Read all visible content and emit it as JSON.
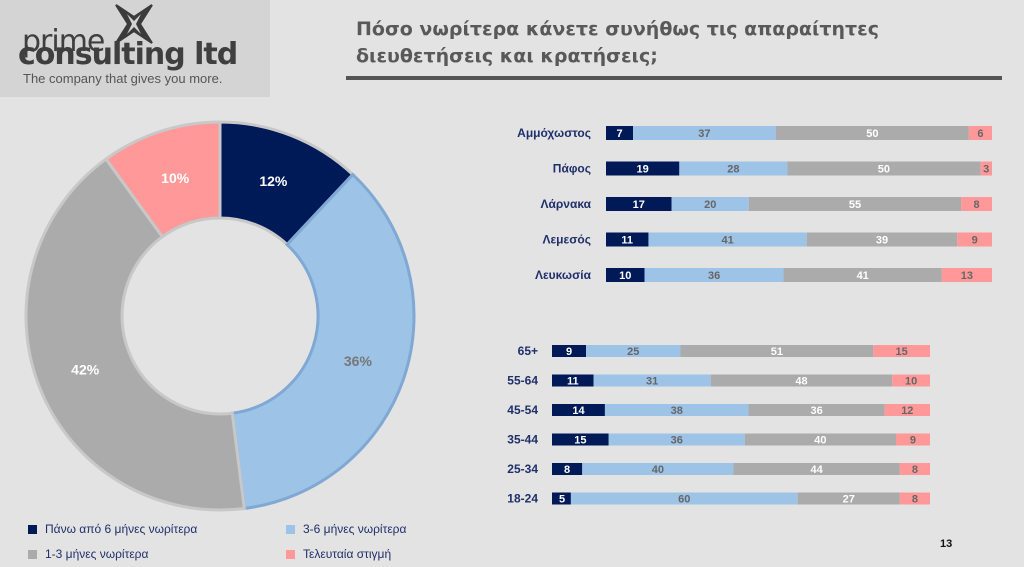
{
  "logo": {
    "line_1": "prime",
    "line_2": "consulting ltd",
    "tagline": "The company that gives you more."
  },
  "title": "Πόσο νωρίτερα κάνετε συνήθως τις απαραίτητες διευθετήσεις και κρατήσεις;",
  "page_number": "13",
  "colors": {
    "page_background": "#e3e3e3",
    "logo_panel": "#d4d4d4",
    "navy": "#001a57",
    "light_blue": "#9dc3e6",
    "gray": "#ababab",
    "pink": "#ff9999",
    "title_text": "#595959",
    "label_text": "#1f2f6a"
  },
  "legend": [
    {
      "label": "Πάνω από 6 μήνες νωρίτερα",
      "color": "#001a57"
    },
    {
      "label": "3-6 μήνες νωρίτερα",
      "color": "#9dc3e6"
    },
    {
      "label": "1-3 μήνες νωρίτερα",
      "color": "#ababab"
    },
    {
      "label": "Τελευταία στιγμή",
      "color": "#ff9999"
    }
  ],
  "chart_data": [
    {
      "type": "pie",
      "variant": "donut",
      "title": "",
      "categories": [
        "Πάνω από 6 μήνες νωρίτερα",
        "3-6 μήνες νωρίτερα",
        "1-3 μήνες νωρίτερα",
        "Τελευταία στιγμή"
      ],
      "values": [
        12,
        36,
        42,
        10
      ],
      "labels": [
        "12%",
        "36%",
        "42%",
        "10%"
      ],
      "colors": [
        "#001a57",
        "#9dc3e6",
        "#ababab",
        "#ff9999"
      ],
      "legend_position": "bottom"
    },
    {
      "type": "bar",
      "orientation": "horizontal",
      "stacked": true,
      "title": "",
      "categories": [
        "Αμμόχωστος",
        "Πάφος",
        "Λάρνακα",
        "Λεμεσός",
        "Λευκωσία"
      ],
      "series": [
        {
          "name": "Πάνω από 6 μήνες νωρίτερα",
          "values": [
            7,
            19,
            17,
            11,
            10
          ],
          "color": "#001a57"
        },
        {
          "name": "3-6 μήνες νωρίτερα",
          "values": [
            37,
            28,
            20,
            41,
            36
          ],
          "color": "#9dc3e6"
        },
        {
          "name": "1-3 μήνες νωρίτερα",
          "values": [
            50,
            50,
            55,
            39,
            41
          ],
          "color": "#ababab"
        },
        {
          "name": "Τελευταία στιγμή",
          "values": [
            6,
            3,
            8,
            9,
            13
          ],
          "color": "#ff9999"
        }
      ],
      "xlim": [
        0,
        100
      ],
      "grid": false
    },
    {
      "type": "bar",
      "orientation": "horizontal",
      "stacked": true,
      "title": "",
      "categories": [
        "65+",
        "55-64",
        "45-54",
        "35-44",
        "25-34",
        "18-24"
      ],
      "series": [
        {
          "name": "Πάνω από 6 μήνες νωρίτερα",
          "values": [
            9,
            11,
            14,
            15,
            8,
            5
          ],
          "color": "#001a57"
        },
        {
          "name": "3-6 μήνες νωρίτερα",
          "values": [
            25,
            31,
            38,
            36,
            40,
            60
          ],
          "color": "#9dc3e6"
        },
        {
          "name": "1-3 μήνες νωρίτερα",
          "values": [
            51,
            48,
            36,
            40,
            44,
            27
          ],
          "color": "#ababab"
        },
        {
          "name": "Τελευταία στιγμή",
          "values": [
            15,
            10,
            12,
            9,
            8,
            8
          ],
          "color": "#ff9999"
        }
      ],
      "xlim": [
        0,
        100
      ],
      "grid": false
    }
  ]
}
